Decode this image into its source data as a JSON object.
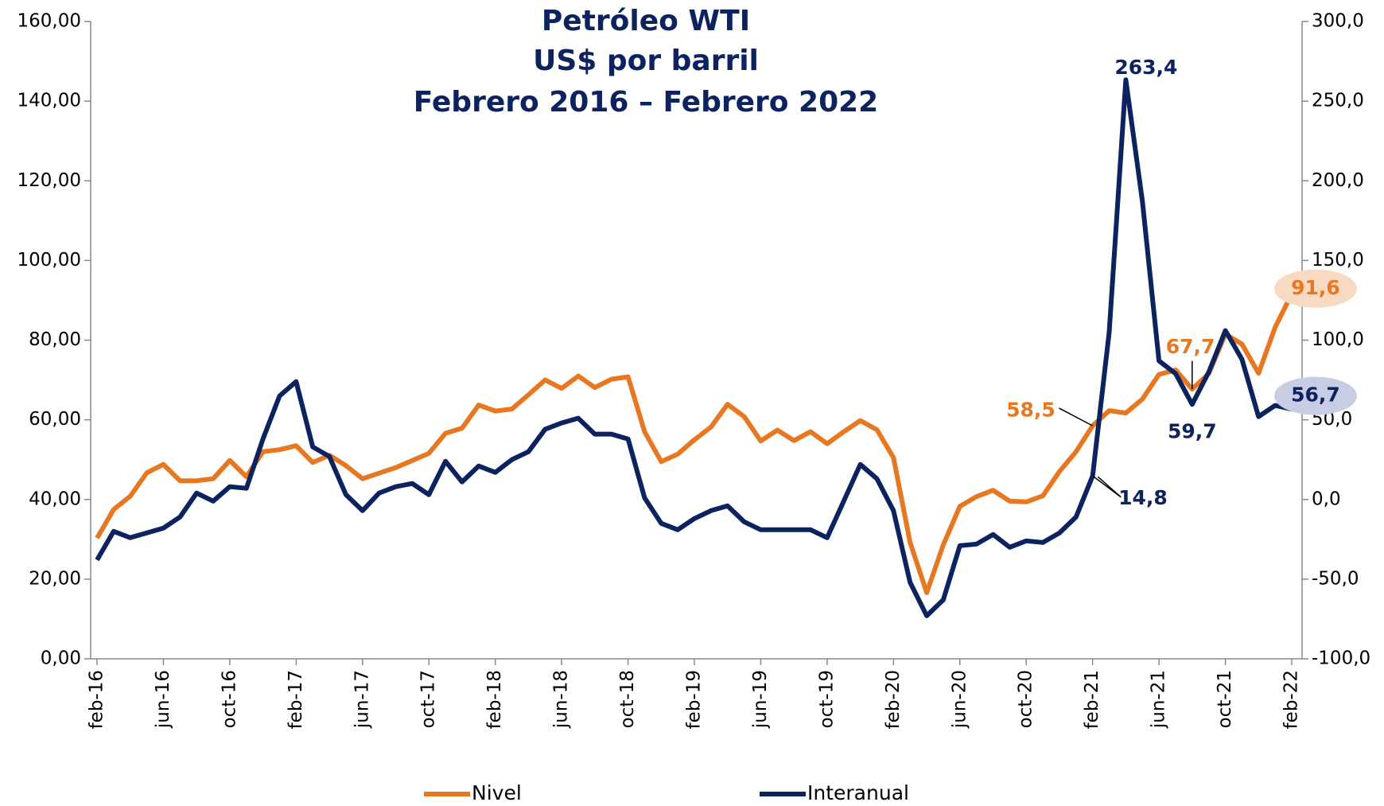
{
  "chart_data": {
    "type": "line",
    "title": "Petróleo WTI",
    "subtitle": [
      "US$ por barril",
      "Febrero 2016 – Febrero 2022"
    ],
    "categories": [
      "feb-16",
      null,
      null,
      null,
      "jun-16",
      null,
      null,
      null,
      "oct-16",
      null,
      null,
      null,
      "feb-17",
      null,
      null,
      null,
      "jun-17",
      null,
      null,
      null,
      "oct-17",
      null,
      null,
      null,
      "feb-18",
      null,
      null,
      null,
      "jun-18",
      null,
      null,
      null,
      "oct-18",
      null,
      null,
      null,
      "feb-19",
      null,
      null,
      null,
      "jun-19",
      null,
      null,
      null,
      "oct-19",
      null,
      null,
      null,
      "feb-20",
      null,
      null,
      null,
      "jun-20",
      null,
      null,
      null,
      "oct-20",
      null,
      null,
      null,
      "feb-21",
      null,
      null,
      null,
      "jun-21",
      null,
      null,
      null,
      "oct-21",
      null,
      null,
      null,
      "feb-22"
    ],
    "series": [
      {
        "name": "Nivel",
        "color": "#E87722",
        "axis": "y",
        "values": [
          30.3,
          37.5,
          40.8,
          46.7,
          48.8,
          44.7,
          44.7,
          45.2,
          49.8,
          45.7,
          52.0,
          52.5,
          53.5,
          49.3,
          51.1,
          48.5,
          45.2,
          46.6,
          48.0,
          49.8,
          51.6,
          56.6,
          57.9,
          63.7,
          62.2,
          62.7,
          66.3,
          70.0,
          67.9,
          71.0,
          68.1,
          70.2,
          70.8,
          57.0,
          49.5,
          51.4,
          55.0,
          58.2,
          63.9,
          60.8,
          54.7,
          57.4,
          54.8,
          57.0,
          54.0,
          57.0,
          59.8,
          57.5,
          50.5,
          29.2,
          16.6,
          28.6,
          38.3,
          40.7,
          42.3,
          39.6,
          39.4,
          40.9,
          47.0,
          52.0,
          58.5,
          62.3,
          61.7,
          65.2,
          71.4,
          72.5,
          67.7,
          71.6,
          81.5,
          79.0,
          71.7,
          83.2,
          91.6
        ],
        "value_labels": [
          null,
          null,
          null,
          null,
          null,
          null,
          null,
          null,
          null,
          null,
          null,
          null,
          null,
          null,
          null,
          null,
          null,
          null,
          null,
          null,
          null,
          null,
          null,
          null,
          null,
          null,
          null,
          null,
          null,
          null,
          null,
          null,
          null,
          null,
          null,
          null,
          null,
          null,
          null,
          null,
          null,
          null,
          null,
          null,
          null,
          null,
          null,
          null,
          null,
          null,
          null,
          null,
          null,
          null,
          null,
          null,
          null,
          null,
          null,
          null,
          "58,5",
          null,
          null,
          null,
          null,
          null,
          "67,7",
          null,
          null,
          null,
          null,
          null,
          "91,6"
        ]
      },
      {
        "name": "Interanual",
        "color": "#0D2360",
        "axis": "y2",
        "values": [
          -38,
          -20,
          -24,
          -21,
          -18,
          -11,
          4,
          -1,
          8,
          7,
          38,
          65,
          74,
          33,
          27,
          3,
          -7,
          4,
          8,
          10,
          3,
          24,
          11,
          21,
          17,
          25,
          30,
          44,
          48,
          51,
          41,
          41,
          38,
          1,
          -15,
          -19,
          -12,
          -7,
          -4,
          -14,
          -19,
          -19,
          -19,
          -19,
          -24,
          -1,
          22,
          13,
          -7,
          -52,
          -73,
          -63,
          -29,
          -28,
          -22,
          -30,
          -26,
          -27,
          -21,
          -11,
          14.8,
          105,
          263.4,
          187,
          87,
          79,
          59.7,
          80,
          106,
          88,
          52,
          59,
          56.7
        ],
        "value_labels": [
          null,
          null,
          null,
          null,
          null,
          null,
          null,
          null,
          null,
          null,
          null,
          null,
          null,
          null,
          null,
          null,
          null,
          null,
          null,
          null,
          null,
          null,
          null,
          null,
          null,
          null,
          null,
          null,
          null,
          null,
          null,
          null,
          null,
          null,
          null,
          null,
          null,
          null,
          null,
          null,
          null,
          null,
          null,
          null,
          null,
          null,
          null,
          null,
          null,
          null,
          null,
          null,
          null,
          null,
          null,
          null,
          null,
          null,
          null,
          null,
          "14,8",
          null,
          "263,4",
          null,
          null,
          null,
          "59,7",
          null,
          null,
          null,
          null,
          null,
          "56,7"
        ]
      }
    ],
    "ylim": [
      0,
      160
    ],
    "yticks": [
      {
        "value": 0,
        "label": "0,00"
      },
      {
        "value": 20,
        "label": "20,00"
      },
      {
        "value": 40,
        "label": "40,00"
      },
      {
        "value": 60,
        "label": "60,00"
      },
      {
        "value": 80,
        "label": "80,00"
      },
      {
        "value": 100,
        "label": "100,00"
      },
      {
        "value": 120,
        "label": "120,00"
      },
      {
        "value": 140,
        "label": "140,00"
      },
      {
        "value": 160,
        "label": "160,00"
      }
    ],
    "y2lim": [
      -100,
      300
    ],
    "y2ticks": [
      {
        "value": -100,
        "label": "-100,0"
      },
      {
        "value": -50,
        "label": "-50,0"
      },
      {
        "value": 0,
        "label": "0,0"
      },
      {
        "value": 50,
        "label": "50,0"
      },
      {
        "value": 100,
        "label": "100,0"
      },
      {
        "value": 150,
        "label": "150,0"
      },
      {
        "value": 200,
        "label": "200,0"
      },
      {
        "value": 250,
        "label": "250,0"
      },
      {
        "value": 300,
        "label": "300,0"
      }
    ],
    "grid": false,
    "legend": "bottom"
  }
}
